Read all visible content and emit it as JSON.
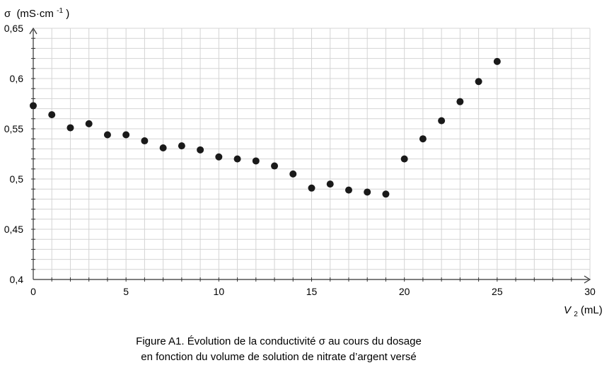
{
  "chart_data": {
    "type": "scatter",
    "ylabel_symbol": "σ",
    "ylabel_unit": "(mS·cm",
    "ylabel_exp": "-1",
    "ylabel_close": ")",
    "xlabel_var": "V",
    "xlabel_sub": "2",
    "xlabel_unit": " (mL)",
    "xlim": [
      0,
      30
    ],
    "ylim": [
      0.4,
      0.65
    ],
    "x_ticks": [
      "0",
      "5",
      "10",
      "15",
      "20",
      "25",
      "30"
    ],
    "y_ticks": [
      "0,4",
      "0,45",
      "0,5",
      "0,55",
      "0,6",
      "0,65"
    ],
    "grid": true,
    "points": [
      {
        "x": 0,
        "y": 0.573
      },
      {
        "x": 1,
        "y": 0.564
      },
      {
        "x": 2,
        "y": 0.551
      },
      {
        "x": 3,
        "y": 0.555
      },
      {
        "x": 4,
        "y": 0.544
      },
      {
        "x": 5,
        "y": 0.544
      },
      {
        "x": 6,
        "y": 0.538
      },
      {
        "x": 7,
        "y": 0.531
      },
      {
        "x": 8,
        "y": 0.533
      },
      {
        "x": 9,
        "y": 0.529
      },
      {
        "x": 10,
        "y": 0.522
      },
      {
        "x": 11,
        "y": 0.52
      },
      {
        "x": 12,
        "y": 0.518
      },
      {
        "x": 13,
        "y": 0.513
      },
      {
        "x": 14,
        "y": 0.505
      },
      {
        "x": 15,
        "y": 0.491
      },
      {
        "x": 16,
        "y": 0.495
      },
      {
        "x": 17,
        "y": 0.489
      },
      {
        "x": 18,
        "y": 0.487
      },
      {
        "x": 19,
        "y": 0.485
      },
      {
        "x": 20,
        "y": 0.52
      },
      {
        "x": 21,
        "y": 0.54
      },
      {
        "x": 22,
        "y": 0.558
      },
      {
        "x": 23,
        "y": 0.577
      },
      {
        "x": 24,
        "y": 0.597
      },
      {
        "x": 25,
        "y": 0.617
      }
    ],
    "colors": {
      "marker": "#1a1a1a",
      "grid": "#d4d4d4",
      "axis": "#333333"
    }
  },
  "caption": {
    "line1": "Figure A1. Évolution de la conductivité σ au cours du dosage",
    "line2": "en fonction du volume de solution de nitrate d’argent versé"
  }
}
